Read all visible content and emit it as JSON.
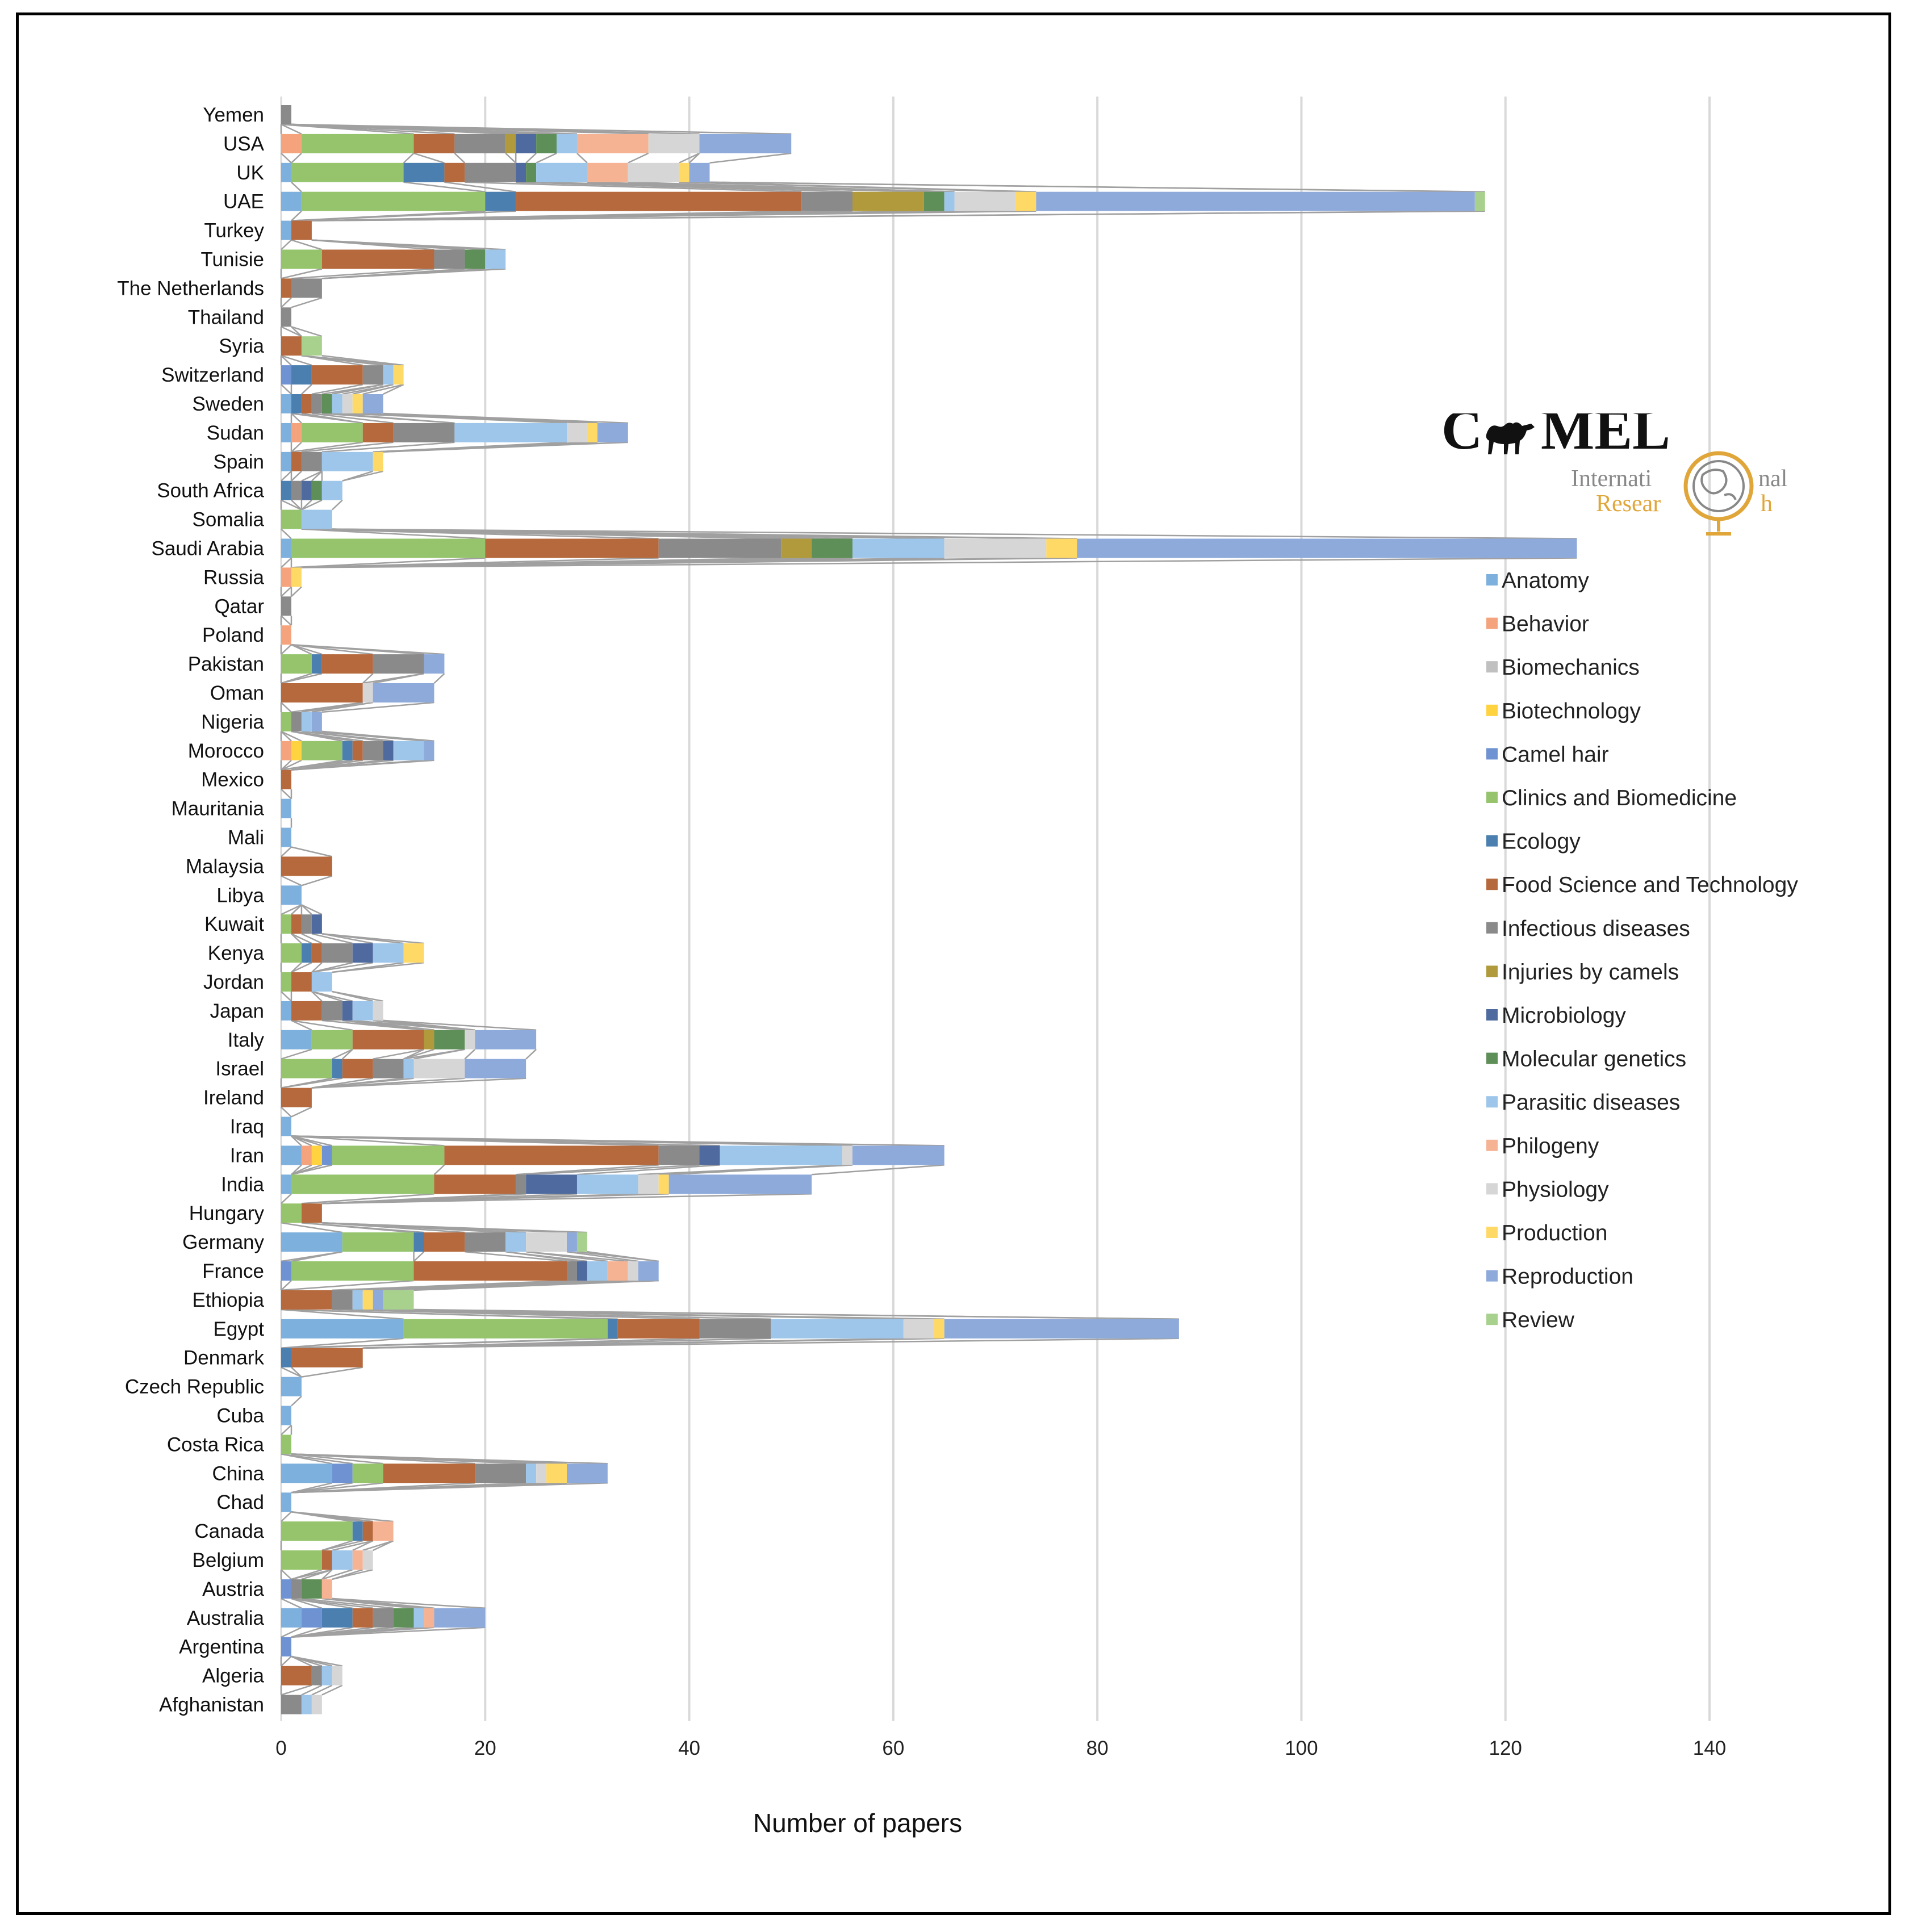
{
  "chart_data": {
    "type": "bar",
    "orientation": "horizontal",
    "stacked": true,
    "title": "",
    "xlabel": "Number of papers",
    "ylabel": "",
    "xlim": [
      0,
      140
    ],
    "xticks": [
      0,
      20,
      40,
      60,
      80,
      100,
      120,
      140
    ],
    "grid": true,
    "legend_position": "right",
    "categories": [
      "Yemen",
      "USA",
      "UK",
      "UAE",
      "Turkey",
      "Tunisie",
      "The Netherlands",
      "Thailand",
      "Syria",
      "Switzerland",
      "Sweden",
      "Sudan",
      "Spain",
      "South Africa",
      "Somalia",
      "Saudi Arabia",
      "Russia",
      "Qatar",
      "Poland",
      "Pakistan",
      "Oman",
      "Nigeria",
      "Morocco",
      "Mexico",
      "Mauritania",
      "Mali",
      "Malaysia",
      "Libya",
      "Kuwait",
      "Kenya",
      "Jordan",
      "Japan",
      "Italy",
      "Israel",
      "Ireland",
      "Iraq",
      "Iran",
      "India",
      "Hungary",
      "Germany",
      "France",
      "Ethiopia",
      "Egypt",
      "Denmark",
      "Czech Republic",
      "Cuba",
      "Costa Rica",
      "China",
      "Chad",
      "Canada",
      "Belgium",
      "Austria",
      "Australia",
      "Argentina",
      "Algeria",
      "Afghanistan"
    ],
    "series": [
      {
        "name": "Anatomy",
        "color": "#7eb0dd",
        "values": [
          0,
          0,
          1,
          2,
          1,
          0,
          0,
          0,
          0,
          0,
          1,
          1,
          1,
          0,
          0,
          1,
          0,
          0,
          0,
          0,
          0,
          0,
          0,
          0,
          1,
          1,
          0,
          2,
          0,
          0,
          0,
          1,
          3,
          0,
          0,
          1,
          2,
          1,
          0,
          6,
          0,
          0,
          12,
          0,
          2,
          1,
          0,
          5,
          1,
          0,
          0,
          0,
          2,
          0,
          0,
          0
        ]
      },
      {
        "name": "Behavior",
        "color": "#f4a37c",
        "values": [
          0,
          2,
          0,
          0,
          0,
          0,
          0,
          0,
          0,
          0,
          0,
          1,
          0,
          0,
          0,
          0,
          1,
          0,
          1,
          0,
          0,
          0,
          1,
          0,
          0,
          0,
          0,
          0,
          0,
          0,
          0,
          0,
          0,
          0,
          0,
          0,
          1,
          0,
          0,
          0,
          0,
          0,
          0,
          0,
          0,
          0,
          0,
          0,
          0,
          0,
          0,
          0,
          0,
          0,
          0,
          0
        ]
      },
      {
        "name": "Biomechanics",
        "color": "#c0c0c0",
        "values": [
          0,
          0,
          0,
          0,
          0,
          0,
          0,
          0,
          0,
          0,
          0,
          0,
          0,
          0,
          0,
          0,
          0,
          0,
          0,
          0,
          0,
          0,
          0,
          0,
          0,
          0,
          0,
          0,
          0,
          0,
          0,
          0,
          0,
          0,
          0,
          0,
          0,
          0,
          0,
          0,
          0,
          0,
          0,
          0,
          0,
          0,
          0,
          0,
          0,
          0,
          0,
          0,
          0,
          0,
          0,
          0
        ]
      },
      {
        "name": "Biotechnology",
        "color": "#ffd23f",
        "values": [
          0,
          0,
          0,
          0,
          0,
          0,
          0,
          0,
          0,
          0,
          0,
          0,
          0,
          0,
          0,
          0,
          0,
          0,
          0,
          0,
          0,
          0,
          1,
          0,
          0,
          0,
          0,
          0,
          0,
          0,
          0,
          0,
          0,
          0,
          0,
          0,
          1,
          0,
          0,
          0,
          0,
          0,
          0,
          0,
          0,
          0,
          0,
          0,
          0,
          0,
          0,
          0,
          0,
          0,
          0,
          0
        ]
      },
      {
        "name": "Camel hair",
        "color": "#6f92d3",
        "values": [
          0,
          0,
          0,
          0,
          0,
          0,
          0,
          0,
          0,
          1,
          0,
          0,
          0,
          0,
          0,
          0,
          0,
          0,
          0,
          0,
          0,
          0,
          0,
          0,
          0,
          0,
          0,
          0,
          0,
          0,
          0,
          0,
          0,
          0,
          0,
          0,
          1,
          0,
          0,
          0,
          1,
          0,
          0,
          0,
          0,
          0,
          0,
          2,
          0,
          0,
          0,
          1,
          2,
          1,
          0,
          0
        ]
      },
      {
        "name": "Clinics and Biomedicine",
        "color": "#95c46d",
        "values": [
          0,
          11,
          11,
          18,
          0,
          4,
          0,
          0,
          0,
          0,
          0,
          6,
          0,
          0,
          2,
          19,
          0,
          0,
          0,
          3,
          0,
          1,
          4,
          0,
          0,
          0,
          0,
          0,
          1,
          2,
          1,
          0,
          4,
          5,
          0,
          0,
          11,
          14,
          2,
          7,
          12,
          0,
          20,
          0,
          0,
          0,
          1,
          3,
          0,
          7,
          4,
          0,
          0,
          0,
          0,
          0
        ]
      },
      {
        "name": "Ecology",
        "color": "#4a7fb0",
        "values": [
          0,
          0,
          4,
          3,
          0,
          0,
          0,
          0,
          0,
          2,
          1,
          0,
          0,
          1,
          0,
          0,
          0,
          0,
          0,
          1,
          0,
          0,
          1,
          0,
          0,
          0,
          0,
          0,
          0,
          1,
          0,
          0,
          0,
          1,
          0,
          0,
          0,
          0,
          0,
          1,
          0,
          0,
          1,
          1,
          0,
          0,
          0,
          0,
          0,
          1,
          0,
          0,
          3,
          0,
          0,
          0
        ]
      },
      {
        "name": "Food Science and Technology",
        "color": "#b5693d",
        "values": [
          0,
          4,
          2,
          28,
          2,
          11,
          1,
          0,
          2,
          5,
          1,
          3,
          1,
          0,
          0,
          17,
          0,
          0,
          0,
          5,
          8,
          0,
          1,
          1,
          0,
          0,
          5,
          0,
          1,
          1,
          2,
          3,
          7,
          3,
          3,
          0,
          21,
          8,
          2,
          4,
          15,
          5,
          8,
          7,
          0,
          0,
          0,
          9,
          0,
          1,
          1,
          0,
          2,
          0,
          3,
          0
        ]
      },
      {
        "name": "Infectious diseases",
        "color": "#8a8a8a",
        "values": [
          1,
          5,
          5,
          5,
          0,
          3,
          3,
          1,
          0,
          2,
          1,
          6,
          2,
          1,
          0,
          12,
          0,
          1,
          0,
          5,
          0,
          1,
          2,
          0,
          0,
          0,
          0,
          0,
          1,
          3,
          0,
          2,
          0,
          3,
          0,
          0,
          4,
          1,
          0,
          4,
          1,
          2,
          7,
          0,
          0,
          0,
          0,
          5,
          0,
          0,
          0,
          1,
          2,
          0,
          1,
          2
        ]
      },
      {
        "name": "Injuries by camels",
        "color": "#b09a3b",
        "values": [
          0,
          1,
          0,
          7,
          0,
          0,
          0,
          0,
          0,
          0,
          0,
          0,
          0,
          0,
          0,
          3,
          0,
          0,
          0,
          0,
          0,
          0,
          0,
          0,
          0,
          0,
          0,
          0,
          0,
          0,
          0,
          0,
          1,
          0,
          0,
          0,
          0,
          0,
          0,
          0,
          0,
          0,
          0,
          0,
          0,
          0,
          0,
          0,
          0,
          0,
          0,
          0,
          0,
          0,
          0,
          0
        ]
      },
      {
        "name": "Microbiology",
        "color": "#4f6a9e",
        "values": [
          0,
          2,
          1,
          0,
          0,
          0,
          0,
          0,
          0,
          0,
          0,
          0,
          0,
          1,
          0,
          0,
          0,
          0,
          0,
          0,
          0,
          0,
          1,
          0,
          0,
          0,
          0,
          0,
          1,
          2,
          0,
          1,
          0,
          0,
          0,
          0,
          2,
          5,
          0,
          0,
          1,
          0,
          0,
          0,
          0,
          0,
          0,
          0,
          0,
          0,
          0,
          0,
          0,
          0,
          0,
          0
        ]
      },
      {
        "name": "Molecular genetics",
        "color": "#5f8f58",
        "values": [
          0,
          2,
          1,
          2,
          0,
          2,
          0,
          0,
          0,
          0,
          1,
          0,
          0,
          1,
          0,
          4,
          0,
          0,
          0,
          0,
          0,
          0,
          0,
          0,
          0,
          0,
          0,
          0,
          0,
          0,
          0,
          0,
          3,
          0,
          0,
          0,
          0,
          0,
          0,
          0,
          0,
          0,
          0,
          0,
          0,
          0,
          0,
          0,
          0,
          0,
          0,
          2,
          2,
          0,
          0,
          0
        ]
      },
      {
        "name": "Parasitic diseases",
        "color": "#9dc6ea",
        "values": [
          0,
          2,
          5,
          1,
          0,
          2,
          0,
          0,
          0,
          1,
          1,
          11,
          5,
          2,
          3,
          9,
          0,
          0,
          0,
          0,
          0,
          1,
          3,
          0,
          0,
          0,
          0,
          0,
          0,
          3,
          2,
          2,
          0,
          1,
          0,
          0,
          12,
          6,
          0,
          2,
          2,
          1,
          13,
          0,
          0,
          0,
          0,
          1,
          0,
          0,
          2,
          0,
          1,
          0,
          1,
          1
        ]
      },
      {
        "name": "Philogeny",
        "color": "#f6b394",
        "values": [
          0,
          7,
          4,
          0,
          0,
          0,
          0,
          0,
          0,
          0,
          0,
          0,
          0,
          0,
          0,
          0,
          0,
          0,
          0,
          0,
          0,
          0,
          0,
          0,
          0,
          0,
          0,
          0,
          0,
          0,
          0,
          0,
          0,
          0,
          0,
          0,
          0,
          0,
          0,
          0,
          2,
          0,
          0,
          0,
          0,
          0,
          0,
          0,
          0,
          2,
          1,
          1,
          1,
          0,
          0,
          0
        ]
      },
      {
        "name": "Physiology",
        "color": "#d6d6d6",
        "values": [
          0,
          5,
          5,
          6,
          0,
          0,
          0,
          0,
          0,
          0,
          1,
          2,
          0,
          0,
          0,
          10,
          0,
          0,
          0,
          0,
          1,
          0,
          0,
          0,
          0,
          0,
          0,
          0,
          0,
          0,
          0,
          1,
          1,
          5,
          0,
          0,
          1,
          2,
          0,
          4,
          1,
          0,
          3,
          0,
          0,
          0,
          0,
          1,
          0,
          0,
          1,
          0,
          0,
          0,
          1,
          1
        ]
      },
      {
        "name": "Production",
        "color": "#ffd966",
        "values": [
          0,
          0,
          1,
          2,
          0,
          0,
          0,
          0,
          0,
          1,
          1,
          1,
          1,
          0,
          0,
          3,
          1,
          0,
          0,
          0,
          0,
          0,
          0,
          0,
          0,
          0,
          0,
          0,
          0,
          2,
          0,
          0,
          0,
          0,
          0,
          0,
          0,
          1,
          0,
          0,
          0,
          1,
          1,
          0,
          0,
          0,
          0,
          2,
          0,
          0,
          0,
          0,
          0,
          0,
          0,
          0
        ]
      },
      {
        "name": "Reproduction",
        "color": "#8eaadb",
        "values": [
          0,
          9,
          2,
          43,
          0,
          0,
          0,
          0,
          0,
          0,
          2,
          3,
          0,
          0,
          0,
          49,
          0,
          0,
          0,
          2,
          6,
          1,
          1,
          0,
          0,
          0,
          0,
          0,
          0,
          0,
          0,
          0,
          6,
          6,
          0,
          0,
          9,
          14,
          0,
          1,
          2,
          1,
          23,
          0,
          0,
          0,
          0,
          4,
          0,
          0,
          0,
          0,
          5,
          0,
          0,
          0
        ]
      },
      {
        "name": "Review",
        "color": "#a9d18e",
        "values": [
          0,
          0,
          0,
          1,
          0,
          0,
          0,
          0,
          2,
          0,
          0,
          0,
          0,
          0,
          0,
          0,
          0,
          0,
          0,
          0,
          0,
          0,
          0,
          0,
          0,
          0,
          0,
          0,
          0,
          0,
          0,
          0,
          0,
          0,
          0,
          0,
          0,
          0,
          0,
          1,
          0,
          3,
          0,
          0,
          0,
          0,
          0,
          0,
          0,
          0,
          0,
          0,
          0,
          0,
          0,
          0
        ]
      }
    ]
  },
  "logo": {
    "word_start": "C",
    "word_end": "MEL",
    "line2_left": "Internati",
    "line2_right": "nal",
    "line3_left": "Resear",
    "line3_right": "h"
  }
}
